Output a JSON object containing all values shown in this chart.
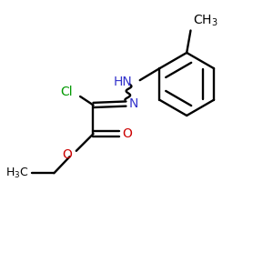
{
  "bg_color": "#ffffff",
  "bond_color": "#000000",
  "cl_color": "#009900",
  "n_color": "#3333cc",
  "o_color": "#cc0000",
  "figsize": [
    3.0,
    3.0
  ],
  "dpi": 100,
  "xlim": [
    0,
    10
  ],
  "ylim": [
    0,
    10
  ]
}
